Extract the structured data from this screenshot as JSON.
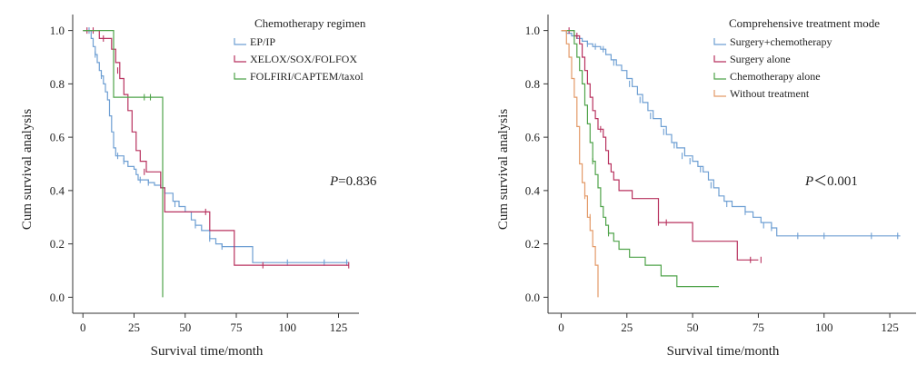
{
  "chart_data": [
    {
      "type": "line",
      "subtype": "kaplan-meier",
      "xlabel": "Survival time/month",
      "ylabel": "Cum survival analysis",
      "xlim": [
        -5,
        135
      ],
      "ylim": [
        -0.06,
        1.06
      ],
      "xticks": [
        0,
        25,
        50,
        75,
        100,
        125
      ],
      "yticks": [
        0.0,
        0.2,
        0.4,
        0.6,
        0.8,
        1.0
      ],
      "xtick_labels": [
        "0",
        "25",
        "50",
        "75",
        "100",
        "125"
      ],
      "ytick_labels": [
        "0.0",
        "0.2",
        "0.4",
        "0.6",
        "0.8",
        "1.0"
      ],
      "grid": false,
      "legend": {
        "title": "Chemotherapy regimen",
        "position": "top-right"
      },
      "annotation": {
        "italic": "P",
        "rest": "=0.836"
      },
      "series": [
        {
          "name": "EP/IP",
          "color": "#6e9fd3",
          "points": [
            [
              0,
              1.0
            ],
            [
              3,
              1.0
            ],
            [
              4,
              0.97
            ],
            [
              5,
              0.94
            ],
            [
              6,
              0.91
            ],
            [
              7,
              0.88
            ],
            [
              8,
              0.85
            ],
            [
              9,
              0.83
            ],
            [
              10,
              0.8
            ],
            [
              11,
              0.77
            ],
            [
              12,
              0.74
            ],
            [
              13,
              0.68
            ],
            [
              14,
              0.62
            ],
            [
              15,
              0.56
            ],
            [
              16,
              0.53
            ],
            [
              17,
              0.53
            ],
            [
              20,
              0.51
            ],
            [
              22,
              0.49
            ],
            [
              25,
              0.48
            ],
            [
              26,
              0.46
            ],
            [
              27,
              0.44
            ],
            [
              28,
              0.44
            ],
            [
              32,
              0.43
            ],
            [
              35,
              0.42
            ],
            [
              38,
              0.41
            ],
            [
              40,
              0.39
            ],
            [
              44,
              0.36
            ],
            [
              47,
              0.34
            ],
            [
              50,
              0.32
            ],
            [
              53,
              0.29
            ],
            [
              55,
              0.27
            ],
            [
              58,
              0.25
            ],
            [
              62,
              0.22
            ],
            [
              65,
              0.2
            ],
            [
              68,
              0.19
            ],
            [
              70,
              0.19
            ],
            [
              82,
              0.19
            ],
            [
              83,
              0.13
            ],
            [
              130,
              0.13
            ]
          ],
          "censored": [
            [
              3,
              1.0
            ],
            [
              6,
              0.91
            ],
            [
              9,
              0.83
            ],
            [
              17,
              0.53
            ],
            [
              20,
              0.51
            ],
            [
              28,
              0.44
            ],
            [
              32,
              0.43
            ],
            [
              45,
              0.35
            ],
            [
              55,
              0.27
            ],
            [
              62,
              0.22
            ],
            [
              68,
              0.19
            ],
            [
              100,
              0.13
            ],
            [
              118,
              0.13
            ],
            [
              129,
              0.13
            ]
          ]
        },
        {
          "name": "XELOX/SOX/FOLFOX",
          "color": "#b8325f",
          "points": [
            [
              0,
              1.0
            ],
            [
              7,
              1.0
            ],
            [
              8,
              0.97
            ],
            [
              13,
              0.97
            ],
            [
              14,
              0.93
            ],
            [
              16,
              0.88
            ],
            [
              18,
              0.82
            ],
            [
              20,
              0.76
            ],
            [
              22,
              0.7
            ],
            [
              24,
              0.62
            ],
            [
              26,
              0.55
            ],
            [
              28,
              0.51
            ],
            [
              31,
              0.47
            ],
            [
              35,
              0.47
            ],
            [
              38,
              0.41
            ],
            [
              40,
              0.32
            ],
            [
              60,
              0.32
            ],
            [
              62,
              0.25
            ],
            [
              73,
              0.25
            ],
            [
              74,
              0.12
            ],
            [
              130,
              0.12
            ]
          ],
          "censored": [
            [
              2,
              1.0
            ],
            [
              5,
              1.0
            ],
            [
              10,
              0.97
            ],
            [
              17,
              0.85
            ],
            [
              30,
              0.47
            ],
            [
              60,
              0.32
            ],
            [
              88,
              0.12
            ],
            [
              130,
              0.12
            ]
          ]
        },
        {
          "name": "FOLFIRI/CAPTEM/taxol",
          "color": "#4fa34a",
          "points": [
            [
              0,
              1.0
            ],
            [
              14,
              1.0
            ],
            [
              15,
              0.75
            ],
            [
              39,
              0.75
            ],
            [
              39,
              0.0
            ]
          ],
          "censored": [
            [
              30,
              0.75
            ],
            [
              33,
              0.75
            ]
          ]
        }
      ]
    },
    {
      "type": "line",
      "subtype": "kaplan-meier",
      "xlabel": "Survival time/month",
      "ylabel": "Cum survival analysis",
      "xlim": [
        -5,
        135
      ],
      "ylim": [
        -0.06,
        1.06
      ],
      "xticks": [
        0,
        25,
        50,
        75,
        100,
        125
      ],
      "yticks": [
        0.0,
        0.2,
        0.4,
        0.6,
        0.8,
        1.0
      ],
      "xtick_labels": [
        "0",
        "25",
        "50",
        "75",
        "100",
        "125"
      ],
      "ytick_labels": [
        "0.0",
        "0.2",
        "0.4",
        "0.6",
        "0.8",
        "1.0"
      ],
      "grid": false,
      "legend": {
        "title": "Comprehensive treatment mode",
        "position": "top-right"
      },
      "annotation": {
        "italic": "P",
        "rest": "＜0.001"
      },
      "series": [
        {
          "name": "Surgery+chemotherapy",
          "color": "#6e9fd3",
          "points": [
            [
              0,
              1.0
            ],
            [
              2,
              0.99
            ],
            [
              4,
              0.98
            ],
            [
              6,
              0.97
            ],
            [
              8,
              0.96
            ],
            [
              10,
              0.95
            ],
            [
              12,
              0.94
            ],
            [
              15,
              0.93
            ],
            [
              17,
              0.91
            ],
            [
              19,
              0.89
            ],
            [
              21,
              0.87
            ],
            [
              23,
              0.85
            ],
            [
              25,
              0.82
            ],
            [
              27,
              0.79
            ],
            [
              29,
              0.76
            ],
            [
              31,
              0.73
            ],
            [
              33,
              0.7
            ],
            [
              35,
              0.67
            ],
            [
              38,
              0.64
            ],
            [
              40,
              0.61
            ],
            [
              42,
              0.58
            ],
            [
              44,
              0.56
            ],
            [
              47,
              0.53
            ],
            [
              50,
              0.51
            ],
            [
              52,
              0.49
            ],
            [
              54,
              0.47
            ],
            [
              56,
              0.44
            ],
            [
              58,
              0.41
            ],
            [
              60,
              0.38
            ],
            [
              62,
              0.36
            ],
            [
              65,
              0.34
            ],
            [
              70,
              0.32
            ],
            [
              73,
              0.3
            ],
            [
              76,
              0.28
            ],
            [
              80,
              0.26
            ],
            [
              82,
              0.23
            ],
            [
              129,
              0.23
            ]
          ],
          "censored": [
            [
              10,
              0.95
            ],
            [
              13,
              0.94
            ],
            [
              16,
              0.93
            ],
            [
              20,
              0.88
            ],
            [
              26,
              0.8
            ],
            [
              30,
              0.74
            ],
            [
              34,
              0.68
            ],
            [
              39,
              0.62
            ],
            [
              43,
              0.57
            ],
            [
              46,
              0.53
            ],
            [
              49,
              0.51
            ],
            [
              53,
              0.48
            ],
            [
              57,
              0.42
            ],
            [
              63,
              0.35
            ],
            [
              70,
              0.32
            ],
            [
              77,
              0.27
            ],
            [
              80,
              0.26
            ],
            [
              90,
              0.23
            ],
            [
              100,
              0.23
            ],
            [
              118,
              0.23
            ],
            [
              128,
              0.23
            ]
          ]
        },
        {
          "name": "Surgery alone",
          "color": "#b8325f",
          "points": [
            [
              0,
              1.0
            ],
            [
              5,
              0.98
            ],
            [
              7,
              0.95
            ],
            [
              8,
              0.9
            ],
            [
              9,
              0.85
            ],
            [
              10,
              0.8
            ],
            [
              11,
              0.75
            ],
            [
              12,
              0.7
            ],
            [
              13,
              0.67
            ],
            [
              14,
              0.63
            ],
            [
              16,
              0.6
            ],
            [
              17,
              0.55
            ],
            [
              18,
              0.5
            ],
            [
              19,
              0.47
            ],
            [
              20,
              0.44
            ],
            [
              22,
              0.4
            ],
            [
              25,
              0.4
            ],
            [
              27,
              0.37
            ],
            [
              36,
              0.37
            ],
            [
              37,
              0.28
            ],
            [
              49,
              0.28
            ],
            [
              50,
              0.21
            ],
            [
              66,
              0.21
            ],
            [
              67,
              0.14
            ],
            [
              75,
              0.14
            ]
          ],
          "censored": [
            [
              3,
              1.0
            ],
            [
              6,
              0.98
            ],
            [
              15,
              0.63
            ],
            [
              37,
              0.28
            ],
            [
              40,
              0.28
            ],
            [
              72,
              0.14
            ],
            [
              76,
              0.14
            ]
          ]
        },
        {
          "name": "Chemotherapy alone",
          "color": "#4fa34a",
          "points": [
            [
              0,
              1.0
            ],
            [
              4,
              1.0
            ],
            [
              5,
              0.95
            ],
            [
              6,
              0.9
            ],
            [
              7,
              0.85
            ],
            [
              8,
              0.8
            ],
            [
              9,
              0.72
            ],
            [
              10,
              0.65
            ],
            [
              11,
              0.58
            ],
            [
              12,
              0.51
            ],
            [
              13,
              0.46
            ],
            [
              14,
              0.41
            ],
            [
              15,
              0.34
            ],
            [
              16,
              0.3
            ],
            [
              17,
              0.27
            ],
            [
              18,
              0.24
            ],
            [
              20,
              0.21
            ],
            [
              22,
              0.18
            ],
            [
              26,
              0.15
            ],
            [
              32,
              0.12
            ],
            [
              38,
              0.08
            ],
            [
              44,
              0.04
            ],
            [
              60,
              0.04
            ]
          ],
          "censored": [
            [
              12,
              0.51
            ],
            [
              18,
              0.24
            ]
          ]
        },
        {
          "name": "Without treatment",
          "color": "#e39a68",
          "points": [
            [
              0,
              1.0
            ],
            [
              1,
              1.0
            ],
            [
              2,
              0.95
            ],
            [
              3,
              0.9
            ],
            [
              4,
              0.82
            ],
            [
              5,
              0.75
            ],
            [
              6,
              0.64
            ],
            [
              7,
              0.5
            ],
            [
              8,
              0.43
            ],
            [
              9,
              0.38
            ],
            [
              10,
              0.3
            ],
            [
              11,
              0.25
            ],
            [
              12,
              0.19
            ],
            [
              13,
              0.12
            ],
            [
              14,
              0.0
            ]
          ],
          "censored": [
            [
              9,
              0.38
            ],
            [
              11,
              0.3
            ]
          ]
        }
      ]
    }
  ]
}
